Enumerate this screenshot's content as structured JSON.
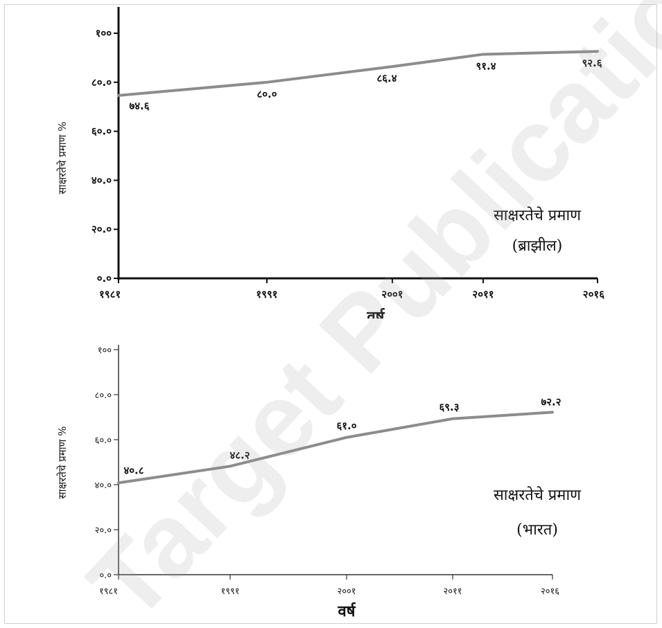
{
  "watermark_text": "Target Publications",
  "chart_data": [
    {
      "type": "line",
      "title": "साक्षरतेचे प्रमाण",
      "subtitle": "(ब्राझील)",
      "xlabel": "वर्ष",
      "ylabel": "साक्षरतेचे प्रमाण %",
      "categories": [
        "१९८१",
        "१९९१",
        "२००१",
        "२०११",
        "२०१६"
      ],
      "values": [
        74.6,
        80.0,
        86.4,
        91.4,
        92.6
      ],
      "value_labels": [
        "७४.६",
        "८०.०",
        "८६.४",
        "९१.४",
        "९२.६"
      ],
      "y_ticks": [
        "०.०",
        "२०.०",
        "४०.०",
        "६०.०",
        "८०.०",
        "१००"
      ],
      "ylim": [
        0,
        100
      ],
      "line_color": "#8c8c8c"
    },
    {
      "type": "line",
      "title": "साक्षरतेचे प्रमाण",
      "subtitle": "(भारत)",
      "xlabel": "वर्ष",
      "ylabel": "साक्षरतेचे प्रमाण %",
      "categories": [
        "१९८१",
        "१९९१",
        "२००१",
        "२०११",
        "२०१६"
      ],
      "values": [
        40.8,
        48.2,
        61.0,
        69.3,
        72.2
      ],
      "value_labels": [
        "४०.८",
        "४८.२",
        "६१.०",
        "६९.३",
        "७२.२"
      ],
      "y_ticks": [
        "०.०",
        "२०.०",
        "४०.०",
        "६०.०",
        "८०.०",
        "१००"
      ],
      "ylim": [
        0,
        100
      ],
      "line_color": "#8c8c8c"
    }
  ]
}
